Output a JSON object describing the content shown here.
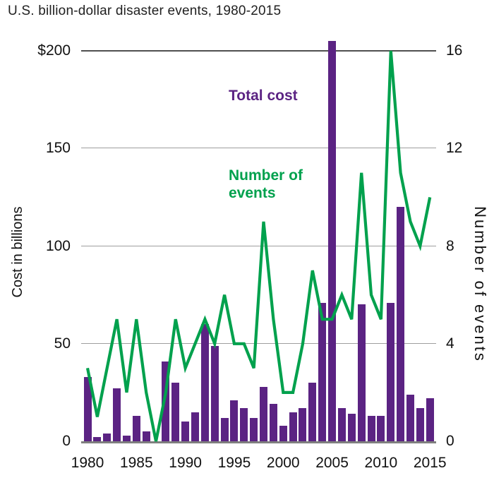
{
  "chart_data": {
    "type": "bar",
    "title": "U.S. billion-dollar disaster events, 1980-2015",
    "x": [
      1980,
      1981,
      1982,
      1983,
      1984,
      1985,
      1986,
      1987,
      1988,
      1989,
      1990,
      1991,
      1992,
      1993,
      1994,
      1995,
      1996,
      1997,
      1998,
      1999,
      2000,
      2001,
      2002,
      2003,
      2004,
      2005,
      2006,
      2007,
      2008,
      2009,
      2010,
      2011,
      2012,
      2013,
      2014,
      2015
    ],
    "series": [
      {
        "name": "Total cost",
        "type": "bar",
        "axis": "left",
        "color": "#5b2383",
        "values": [
          33,
          2,
          4,
          27,
          3,
          13,
          5,
          0,
          41,
          30,
          10,
          15,
          60,
          49,
          12,
          21,
          17,
          12,
          28,
          19,
          8,
          15,
          17,
          30,
          71,
          205,
          17,
          14,
          70,
          13,
          13,
          71,
          120,
          24,
          17,
          22
        ]
      },
      {
        "name": "Number of events",
        "type": "line",
        "axis": "right",
        "color": "#00a14d",
        "values": [
          3,
          1,
          3,
          5,
          2,
          5,
          2,
          0,
          2,
          5,
          3,
          4,
          5,
          4,
          6,
          4,
          4,
          3,
          9,
          5,
          2,
          2,
          4,
          7,
          5,
          5,
          6,
          5,
          11,
          6,
          5,
          16,
          11,
          9,
          8,
          10
        ]
      }
    ],
    "left_axis": {
      "label": "Cost in billions",
      "ticks": [
        "$200",
        "150",
        "100",
        "50",
        "0"
      ],
      "tick_values": [
        200,
        150,
        100,
        50,
        0
      ],
      "range": [
        0,
        200
      ]
    },
    "right_axis": {
      "label": "Number of events",
      "ticks": [
        "16",
        "12",
        "8",
        "4",
        "0"
      ],
      "tick_values": [
        16,
        12,
        8,
        4,
        0
      ],
      "range": [
        0,
        16
      ]
    },
    "x_ticks": [
      "1980",
      "1985",
      "1990",
      "1995",
      "2000",
      "2005",
      "2010",
      "2015"
    ],
    "grid": true,
    "legend_position": "inside-top"
  }
}
